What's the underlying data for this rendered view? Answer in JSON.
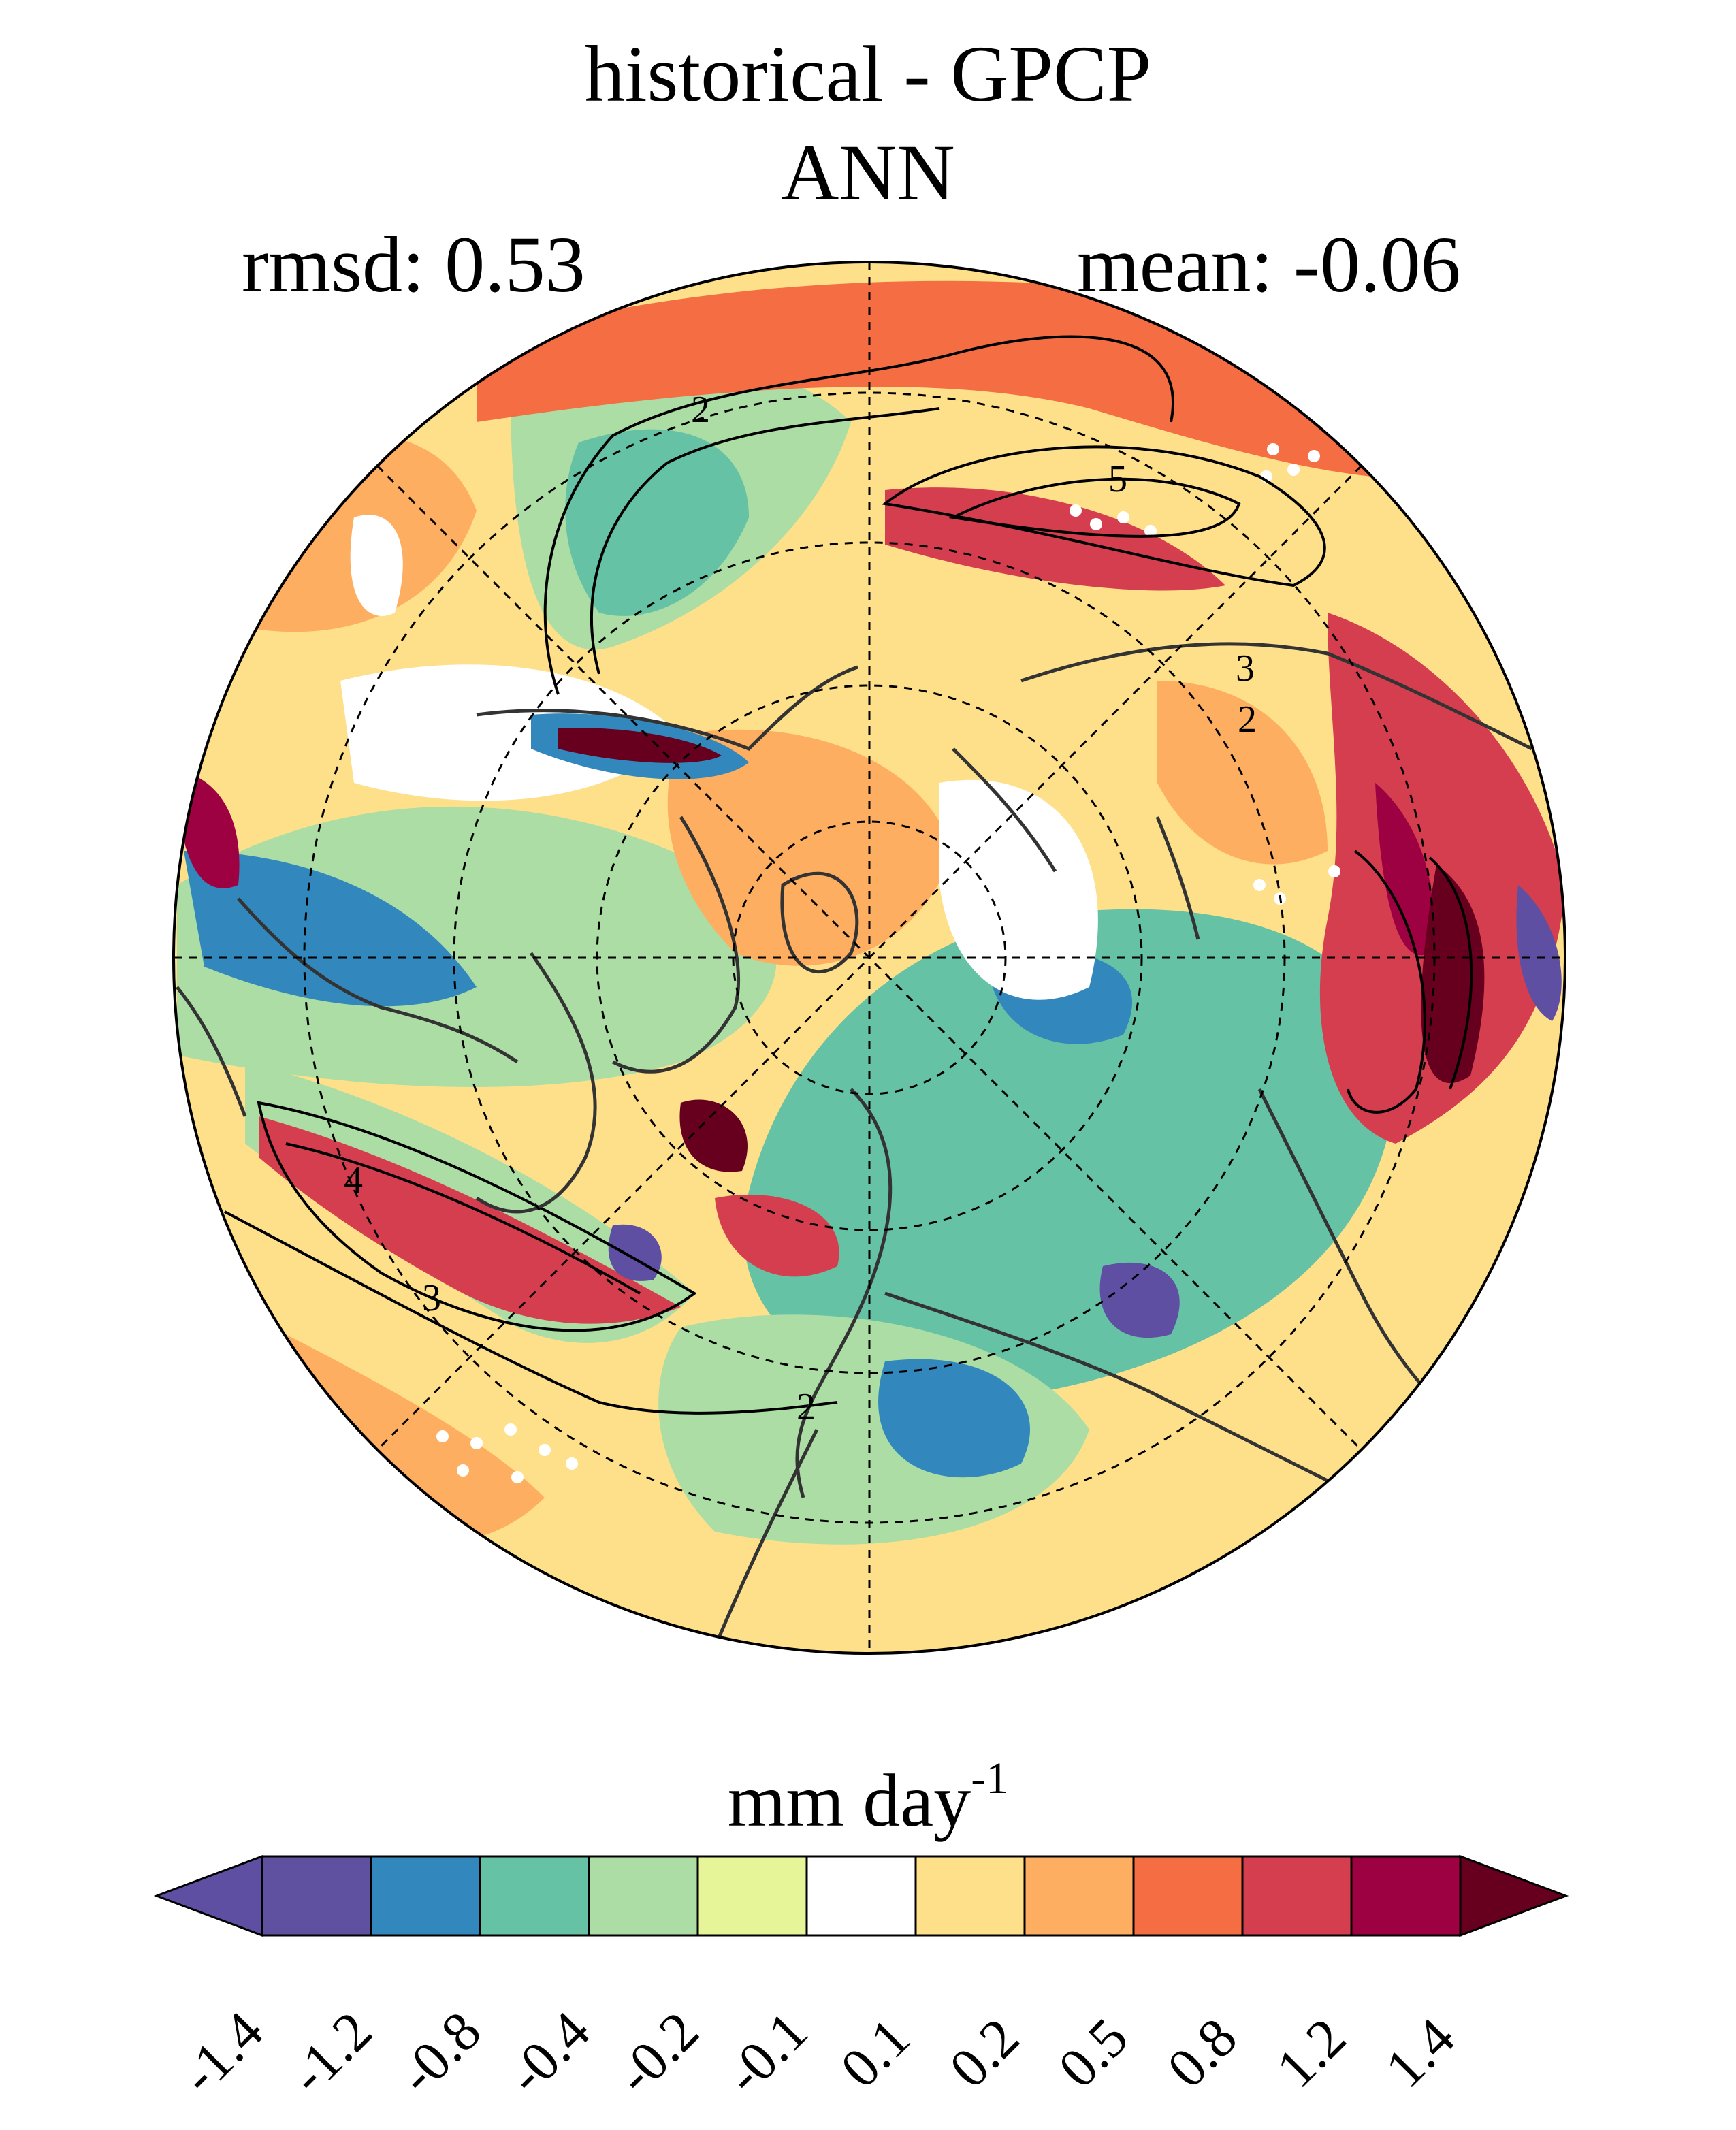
{
  "title": "historical - GPCP",
  "subtitle": "ANN",
  "stats": {
    "rmsd_label": "rmsd: 0.53",
    "mean_label": "mean: -0.06"
  },
  "map": {
    "projection": "north polar stereographic",
    "contour_labels": [
      "2",
      "5",
      "4",
      "3",
      "2",
      "3",
      "2"
    ],
    "stippling": true
  },
  "colorbar": {
    "unit_base": "mm day",
    "unit_exp": "-1",
    "ticks": [
      "-1.4",
      "-1.2",
      "-0.8",
      "-0.4",
      "-0.2",
      "-0.1",
      "0.1",
      "0.2",
      "0.5",
      "0.8",
      "1.2",
      "1.4"
    ],
    "colors": [
      "#5e4fa2",
      "#6050a0",
      "#3288bd",
      "#66c2a5",
      "#abdda4",
      "#e6f598",
      "#ffffff",
      "#fee08b",
      "#fdae61",
      "#f46d43",
      "#d53e4f",
      "#9e0142",
      "#67001f"
    ],
    "extend": "both"
  }
}
